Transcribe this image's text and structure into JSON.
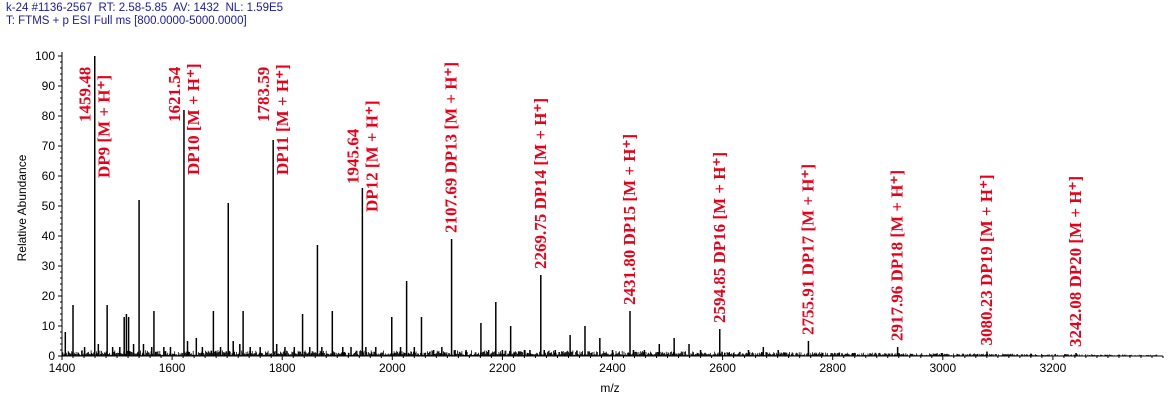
{
  "header": {
    "line1": "k-24 #1136-2567  RT: 2.58-5.85  AV: 1432  NL: 1.59E5",
    "line2": "T: FTMS + p ESI Full ms [800.0000-5000.0000]"
  },
  "chart_data": {
    "type": "line",
    "title": "",
    "xlabel": "m/z",
    "ylabel": "Relative Abundance",
    "xlim": [
      1400,
      3400
    ],
    "ylim": [
      0,
      100
    ],
    "xticks": [
      1400,
      1600,
      1800,
      2000,
      2200,
      2400,
      2600,
      2800,
      3000,
      3200
    ],
    "yticks": [
      0,
      10,
      20,
      30,
      40,
      50,
      60,
      70,
      80,
      90,
      100
    ],
    "grid": false,
    "colors": {
      "spectrum": "#000000",
      "annotation": "#e8001a",
      "header": "#1a1aa6"
    },
    "peaks": [
      {
        "x": 1406,
        "y": 8
      },
      {
        "x": 1420,
        "y": 17
      },
      {
        "x": 1441,
        "y": 3
      },
      {
        "x": 1459.48,
        "y": 100
      },
      {
        "x": 1466,
        "y": 4
      },
      {
        "x": 1482,
        "y": 17
      },
      {
        "x": 1492,
        "y": 3
      },
      {
        "x": 1505,
        "y": 3
      },
      {
        "x": 1513,
        "y": 13
      },
      {
        "x": 1517,
        "y": 14
      },
      {
        "x": 1521,
        "y": 13
      },
      {
        "x": 1530,
        "y": 4
      },
      {
        "x": 1540,
        "y": 52
      },
      {
        "x": 1548,
        "y": 4
      },
      {
        "x": 1563,
        "y": 3
      },
      {
        "x": 1567,
        "y": 15
      },
      {
        "x": 1585,
        "y": 3
      },
      {
        "x": 1597,
        "y": 3
      },
      {
        "x": 1621.54,
        "y": 82
      },
      {
        "x": 1628,
        "y": 5
      },
      {
        "x": 1644,
        "y": 6
      },
      {
        "x": 1655,
        "y": 3
      },
      {
        "x": 1675,
        "y": 15
      },
      {
        "x": 1688,
        "y": 3
      },
      {
        "x": 1702,
        "y": 51
      },
      {
        "x": 1711,
        "y": 5
      },
      {
        "x": 1723,
        "y": 4
      },
      {
        "x": 1729,
        "y": 15
      },
      {
        "x": 1742,
        "y": 3
      },
      {
        "x": 1760,
        "y": 3
      },
      {
        "x": 1783.59,
        "y": 72
      },
      {
        "x": 1790,
        "y": 4
      },
      {
        "x": 1805,
        "y": 3
      },
      {
        "x": 1822,
        "y": 3
      },
      {
        "x": 1837,
        "y": 14
      },
      {
        "x": 1850,
        "y": 3
      },
      {
        "x": 1864,
        "y": 37
      },
      {
        "x": 1872,
        "y": 3
      },
      {
        "x": 1891,
        "y": 15
      },
      {
        "x": 1910,
        "y": 3
      },
      {
        "x": 1925,
        "y": 3
      },
      {
        "x": 1945.64,
        "y": 56
      },
      {
        "x": 1952,
        "y": 3
      },
      {
        "x": 1970,
        "y": 3
      },
      {
        "x": 1999,
        "y": 13
      },
      {
        "x": 2015,
        "y": 3
      },
      {
        "x": 2026,
        "y": 25
      },
      {
        "x": 2040,
        "y": 3
      },
      {
        "x": 2053,
        "y": 13
      },
      {
        "x": 2075,
        "y": 2
      },
      {
        "x": 2090,
        "y": 3
      },
      {
        "x": 2107.69,
        "y": 39
      },
      {
        "x": 2114,
        "y": 2
      },
      {
        "x": 2134,
        "y": 2
      },
      {
        "x": 2161,
        "y": 11
      },
      {
        "x": 2175,
        "y": 2
      },
      {
        "x": 2188,
        "y": 18
      },
      {
        "x": 2200,
        "y": 2
      },
      {
        "x": 2215,
        "y": 10
      },
      {
        "x": 2240,
        "y": 2
      },
      {
        "x": 2250,
        "y": 2
      },
      {
        "x": 2269.75,
        "y": 27
      },
      {
        "x": 2276,
        "y": 2
      },
      {
        "x": 2296,
        "y": 2
      },
      {
        "x": 2323,
        "y": 7
      },
      {
        "x": 2350,
        "y": 10
      },
      {
        "x": 2377,
        "y": 6
      },
      {
        "x": 2400,
        "y": 2
      },
      {
        "x": 2431.8,
        "y": 15
      },
      {
        "x": 2438,
        "y": 2
      },
      {
        "x": 2458,
        "y": 2
      },
      {
        "x": 2485,
        "y": 4
      },
      {
        "x": 2512,
        "y": 6
      },
      {
        "x": 2539,
        "y": 4
      },
      {
        "x": 2560,
        "y": 2
      },
      {
        "x": 2594.85,
        "y": 9
      },
      {
        "x": 2620,
        "y": 1
      },
      {
        "x": 2647,
        "y": 2
      },
      {
        "x": 2674,
        "y": 3
      },
      {
        "x": 2701,
        "y": 2
      },
      {
        "x": 2755.91,
        "y": 5
      },
      {
        "x": 2782,
        "y": 1
      },
      {
        "x": 2836,
        "y": 1
      },
      {
        "x": 2917.96,
        "y": 3
      },
      {
        "x": 2998,
        "y": 1
      },
      {
        "x": 3080.23,
        "y": 1.5
      },
      {
        "x": 3160,
        "y": 0.8
      },
      {
        "x": 3242.08,
        "y": 1
      }
    ],
    "annotations": [
      {
        "text": "1459.48",
        "x": 1459.48,
        "row": 1
      },
      {
        "text": "DP9 [M + H⁺]",
        "x": 1459.48,
        "row": 2
      },
      {
        "text": "1621.54",
        "x": 1621.54,
        "row": 1
      },
      {
        "text": "DP10 [M + H⁺]",
        "x": 1621.54,
        "row": 2
      },
      {
        "text": "1783.59",
        "x": 1783.59,
        "row": 1
      },
      {
        "text": "DP11 [M + H⁺]",
        "x": 1783.59,
        "row": 2
      },
      {
        "text": "1945.64",
        "x": 1945.64,
        "row": 1
      },
      {
        "text": "DP12 [M + H⁺]",
        "x": 1945.64,
        "row": 2
      },
      {
        "text": "2107.69 DP13 [M + H⁺]",
        "x": 2107.69,
        "row": 1
      },
      {
        "text": "2269.75 DP14 [M + H⁺]",
        "x": 2269.75,
        "row": 1
      },
      {
        "text": "2431.80 DP15 [M + H⁺]",
        "x": 2431.8,
        "row": 1
      },
      {
        "text": "2594.85 DP16 [M + H⁺]",
        "x": 2594.85,
        "row": 1
      },
      {
        "text": "2755.91 DP17 [M + H⁺]",
        "x": 2755.91,
        "row": 1
      },
      {
        "text": "2917.96 DP18 [M + H⁺]",
        "x": 2917.96,
        "row": 1
      },
      {
        "text": "3080.23 DP19 [M + H⁺]",
        "x": 3080.23,
        "row": 1
      },
      {
        "text": "3242.08 DP20 [M + H⁺]",
        "x": 3242.08,
        "row": 1
      }
    ]
  }
}
